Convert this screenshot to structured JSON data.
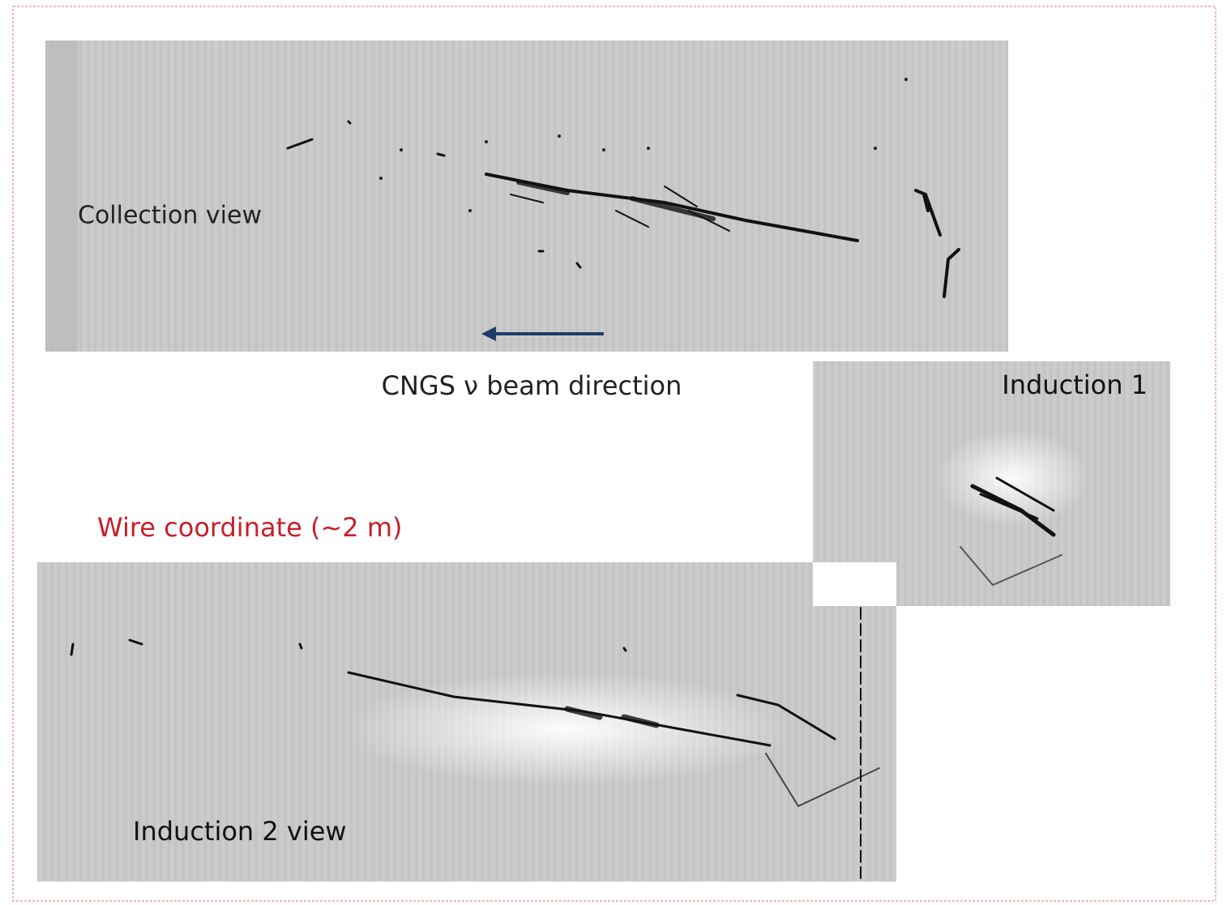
{
  "panels": {
    "collection": {
      "label": "Collection view"
    },
    "beam": {
      "label": "CNGS ν beam direction"
    },
    "induction1": {
      "label": "Induction 1"
    },
    "wire": {
      "label": "Wire coordinate (~2 m)"
    },
    "induction2": {
      "label": "Induction 2 view"
    }
  }
}
